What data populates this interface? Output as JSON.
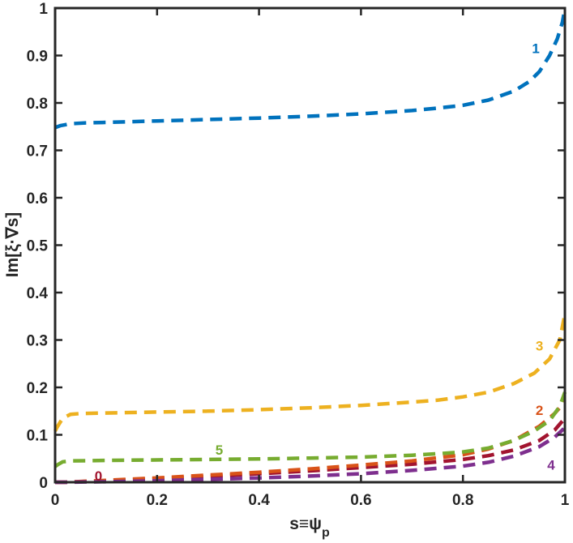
{
  "chart_data": {
    "type": "line",
    "xlabel": "s≡ψ_p",
    "ylabel": "Im[ξ·∇s]",
    "xlim": [
      0,
      1
    ],
    "ylim": [
      0,
      1
    ],
    "xticks": [
      "0",
      "0.2",
      "0.4",
      "0.6",
      "0.8",
      "1"
    ],
    "yticks": [
      "0",
      "0.1",
      "0.2",
      "0.3",
      "0.4",
      "0.5",
      "0.6",
      "0.7",
      "0.8",
      "0.9",
      "1"
    ],
    "grid": false,
    "line_style": "dashed",
    "series": [
      {
        "name": "0",
        "color": "#A2142F",
        "x": [
          0,
          0.02,
          0.1,
          0.2,
          0.3,
          0.4,
          0.5,
          0.6,
          0.7,
          0.8,
          0.85,
          0.9,
          0.95,
          0.98,
          1.0
        ],
        "values": [
          0.0,
          0.0,
          0.003,
          0.007,
          0.012,
          0.018,
          0.024,
          0.031,
          0.038,
          0.048,
          0.056,
          0.068,
          0.088,
          0.11,
          0.135
        ]
      },
      {
        "name": "1",
        "color": "#0072BD",
        "x": [
          0,
          0.01,
          0.03,
          0.06,
          0.1,
          0.2,
          0.3,
          0.4,
          0.5,
          0.6,
          0.7,
          0.75,
          0.8,
          0.85,
          0.9,
          0.93,
          0.95,
          0.97,
          0.985,
          0.995,
          1.0
        ],
        "values": [
          0.748,
          0.752,
          0.756,
          0.758,
          0.759,
          0.762,
          0.765,
          0.768,
          0.772,
          0.777,
          0.784,
          0.789,
          0.795,
          0.806,
          0.825,
          0.845,
          0.866,
          0.9,
          0.935,
          0.97,
          1.0
        ]
      },
      {
        "name": "2",
        "color": "#D95319",
        "x": [
          0,
          0.02,
          0.1,
          0.2,
          0.3,
          0.4,
          0.5,
          0.6,
          0.7,
          0.8,
          0.85,
          0.9,
          0.95,
          0.98,
          1.0
        ],
        "values": [
          0.0,
          0.0,
          0.004,
          0.009,
          0.015,
          0.021,
          0.028,
          0.036,
          0.045,
          0.058,
          0.07,
          0.088,
          0.118,
          0.145,
          0.17
        ]
      },
      {
        "name": "3",
        "color": "#EDB120",
        "x": [
          0,
          0.005,
          0.015,
          0.03,
          0.05,
          0.1,
          0.2,
          0.3,
          0.4,
          0.5,
          0.6,
          0.7,
          0.75,
          0.8,
          0.85,
          0.9,
          0.94,
          0.97,
          0.99,
          1.0
        ],
        "values": [
          0.108,
          0.118,
          0.135,
          0.143,
          0.145,
          0.146,
          0.148,
          0.15,
          0.153,
          0.157,
          0.162,
          0.169,
          0.173,
          0.18,
          0.19,
          0.208,
          0.23,
          0.26,
          0.3,
          0.355
        ]
      },
      {
        "name": "4",
        "color": "#7E2F8E",
        "x": [
          0,
          0.02,
          0.1,
          0.2,
          0.3,
          0.4,
          0.5,
          0.6,
          0.7,
          0.8,
          0.85,
          0.9,
          0.95,
          0.98,
          1.0
        ],
        "values": [
          0.0,
          0.0,
          0.001,
          0.003,
          0.006,
          0.009,
          0.013,
          0.018,
          0.025,
          0.034,
          0.042,
          0.055,
          0.075,
          0.095,
          0.115
        ]
      },
      {
        "name": "5",
        "color": "#77AC30",
        "x": [
          0,
          0.005,
          0.015,
          0.03,
          0.1,
          0.2,
          0.3,
          0.4,
          0.5,
          0.6,
          0.7,
          0.75,
          0.8,
          0.85,
          0.9,
          0.94,
          0.97,
          0.99,
          1.0
        ],
        "values": [
          0.033,
          0.037,
          0.043,
          0.045,
          0.046,
          0.047,
          0.048,
          0.049,
          0.051,
          0.053,
          0.057,
          0.06,
          0.064,
          0.072,
          0.088,
          0.108,
          0.13,
          0.16,
          0.19
        ]
      }
    ],
    "annotations": [
      {
        "text": "1",
        "series": "1",
        "x": 0.943,
        "y": 0.915
      },
      {
        "text": "3",
        "series": "3",
        "x": 0.95,
        "y": 0.288
      },
      {
        "text": "2",
        "series": "2",
        "x": 0.95,
        "y": 0.152
      },
      {
        "text": "5",
        "series": "5",
        "x": 0.322,
        "y": 0.068
      },
      {
        "text": "0",
        "series": "0",
        "x": 0.085,
        "y": 0.014
      },
      {
        "text": "4",
        "series": "4",
        "x": 0.973,
        "y": 0.037
      }
    ]
  }
}
